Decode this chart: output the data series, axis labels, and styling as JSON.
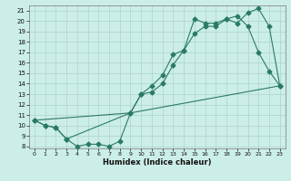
{
  "xlabel": "Humidex (Indice chaleur)",
  "bg_color": "#cceee8",
  "grid_color": "#aad4cc",
  "line_color": "#2a7a65",
  "xlim": [
    -0.5,
    23.5
  ],
  "ylim": [
    7.8,
    21.5
  ],
  "xticks": [
    0,
    1,
    2,
    3,
    4,
    5,
    6,
    7,
    8,
    9,
    10,
    11,
    12,
    13,
    14,
    15,
    16,
    17,
    18,
    19,
    20,
    21,
    22,
    23
  ],
  "yticks": [
    8,
    9,
    10,
    11,
    12,
    13,
    14,
    15,
    16,
    17,
    18,
    19,
    20,
    21
  ],
  "line1_x": [
    0,
    1,
    2,
    3,
    4,
    5,
    6,
    7,
    8,
    9,
    10,
    11,
    12,
    13,
    14,
    15,
    16,
    17,
    18,
    19,
    20,
    21,
    22,
    23
  ],
  "line1_y": [
    10.5,
    10.0,
    9.8,
    8.7,
    8.0,
    8.2,
    8.2,
    8.0,
    8.5,
    11.2,
    13.0,
    13.2,
    14.0,
    15.8,
    17.2,
    18.8,
    19.5,
    19.5,
    20.2,
    20.5,
    19.5,
    17.0,
    15.2,
    13.8
  ],
  "line2_x": [
    0,
    1,
    2,
    3,
    9,
    10,
    11,
    12,
    13,
    14,
    15,
    16,
    17,
    18,
    19,
    20,
    21,
    22,
    23
  ],
  "line2_y": [
    10.5,
    10.0,
    9.8,
    8.7,
    11.2,
    13.0,
    13.8,
    14.8,
    16.8,
    17.2,
    20.2,
    19.8,
    19.8,
    20.2,
    19.8,
    20.8,
    21.2,
    19.5,
    13.8
  ],
  "line3_x": [
    0,
    9,
    23
  ],
  "line3_y": [
    10.5,
    11.2,
    13.8
  ]
}
